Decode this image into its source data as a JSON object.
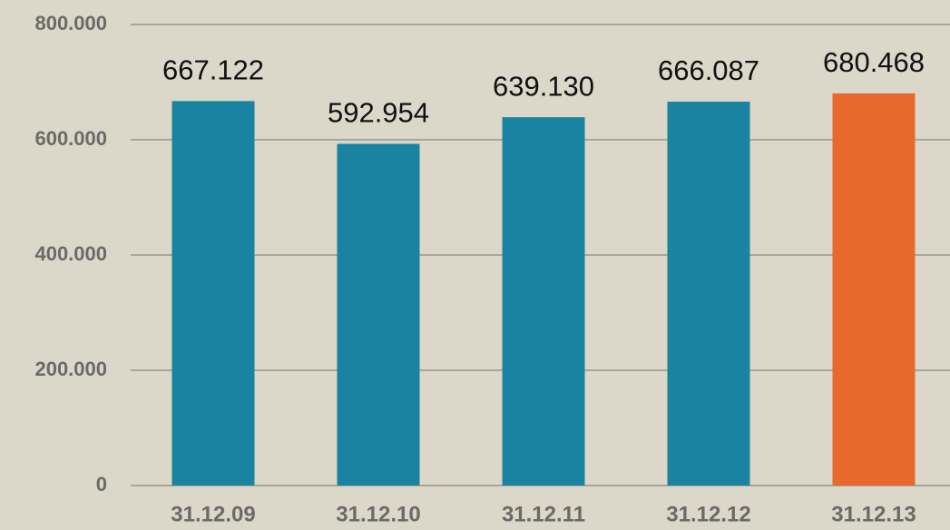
{
  "chart_data": {
    "type": "bar",
    "categories": [
      "31.12.09",
      "31.12.10",
      "31.12.11",
      "31.12.12",
      "31.12.13"
    ],
    "values": [
      667122,
      592954,
      639130,
      666087,
      680468
    ],
    "value_labels": [
      "667.122",
      "592.954",
      "639.130",
      "666.087",
      "680.468"
    ],
    "colors": [
      "#1a83a1",
      "#1a83a1",
      "#1a83a1",
      "#1a83a1",
      "#e8692c"
    ],
    "ylim": [
      0,
      800000
    ],
    "yticks": [
      0,
      {
        "value": 200000,
        "label": "200.000"
      },
      {
        "value": 400000,
        "label": "400.000"
      },
      {
        "value": 600000,
        "label": "600.000"
      },
      {
        "value": 800000,
        "label": "800.000"
      }
    ],
    "grid": true
  }
}
